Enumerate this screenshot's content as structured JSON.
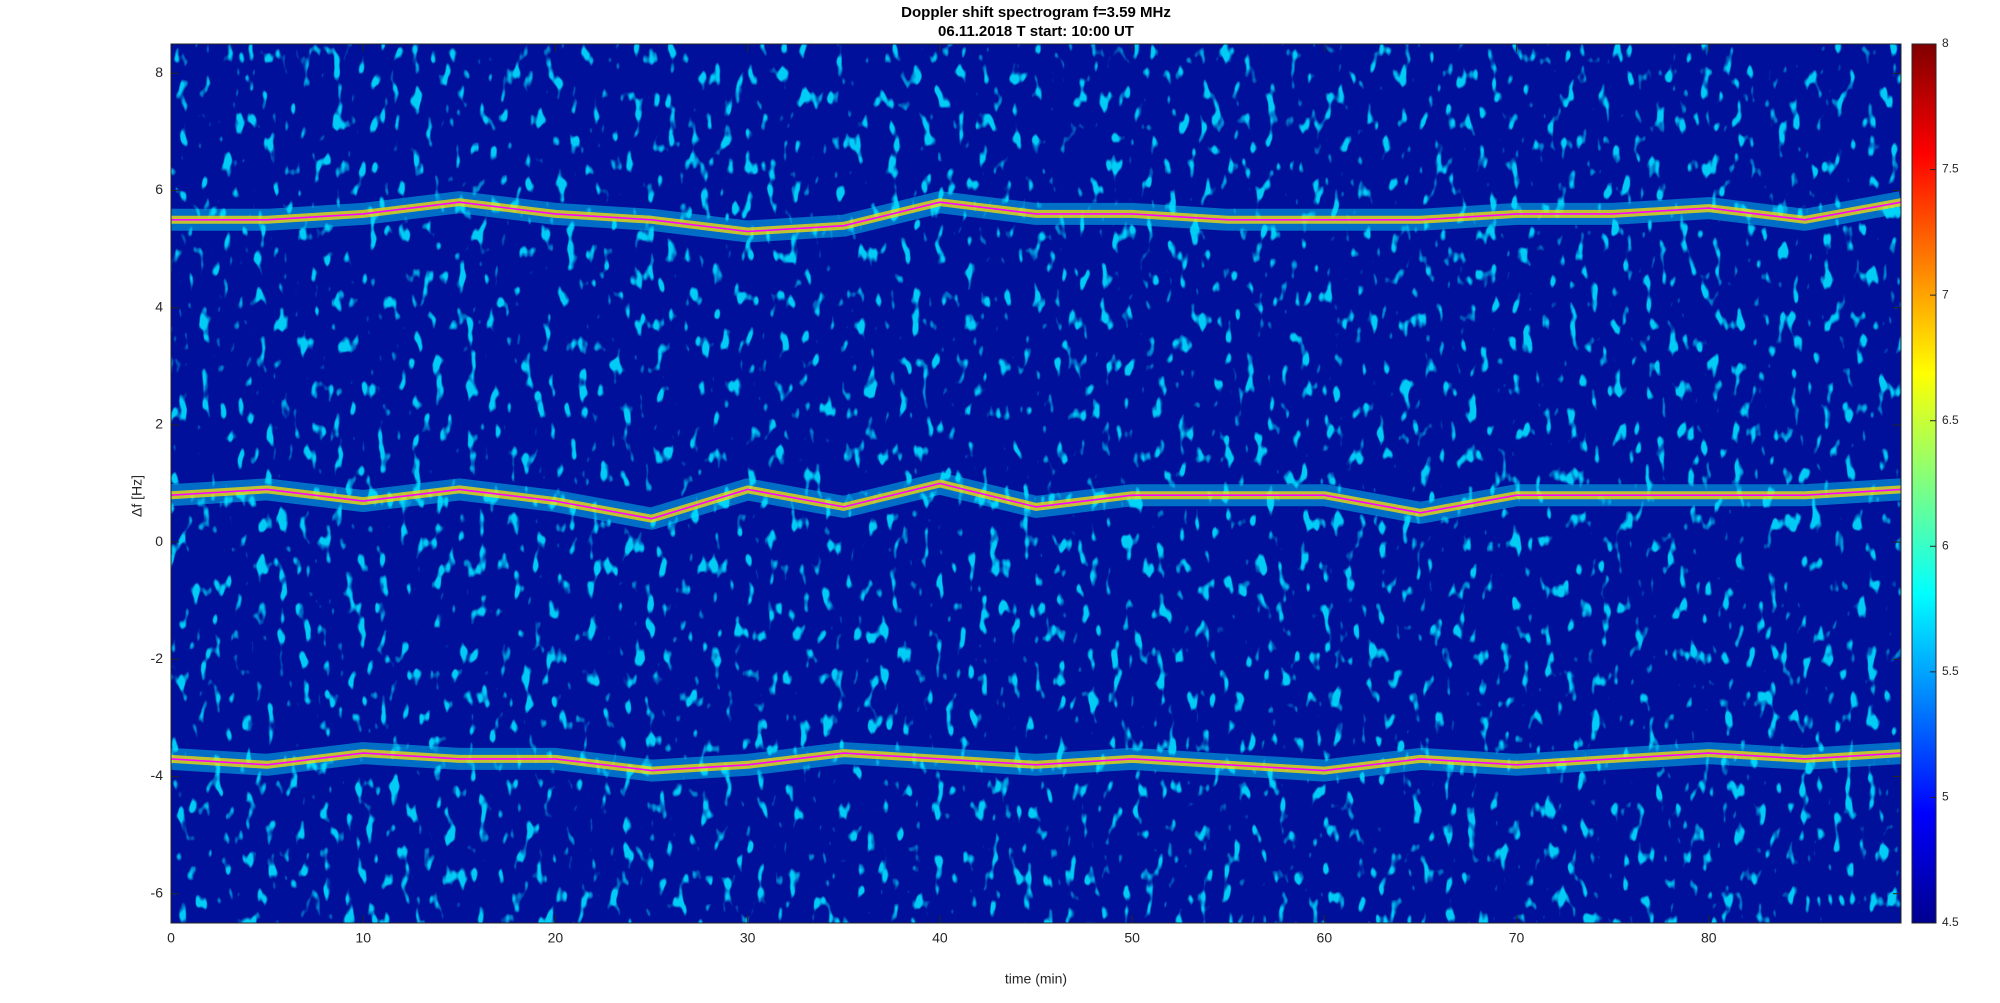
{
  "chart_data": {
    "type": "spectrogram",
    "title": "Doppler shift spectrogram f=3.59 MHz",
    "subtitle": "06.11.2018    T start: 10:00 UT",
    "xlabel": "time (min)",
    "ylabel": "Δf [Hz]",
    "xlim": [
      0,
      90
    ],
    "xticks": [
      0,
      10,
      20,
      30,
      40,
      50,
      60,
      70,
      80
    ],
    "ylim": [
      -6.5,
      8.5
    ],
    "yticks": [
      -6,
      -4,
      -2,
      0,
      2,
      4,
      6,
      8
    ],
    "colorbar": {
      "lim": [
        4.5,
        8
      ],
      "ticks": [
        4.5,
        5,
        5.5,
        6,
        6.5,
        7,
        7.5,
        8
      ]
    },
    "x": [
      0,
      5,
      10,
      15,
      20,
      25,
      30,
      35,
      40,
      45,
      50,
      55,
      60,
      65,
      70,
      75,
      80,
      85,
      90
    ],
    "series": [
      {
        "color": "#ff00ff",
        "values": [
          5.5,
          5.5,
          5.6,
          5.8,
          5.6,
          5.5,
          5.3,
          5.4,
          5.8,
          5.6,
          5.6,
          5.5,
          5.5,
          5.5,
          5.6,
          5.6,
          5.7,
          5.5,
          5.8
        ]
      },
      {
        "color": "#ff00ff",
        "values": [
          0.8,
          0.9,
          0.7,
          0.9,
          0.7,
          0.4,
          0.9,
          0.6,
          1.0,
          0.6,
          0.8,
          0.8,
          0.8,
          0.5,
          0.8,
          0.8,
          0.8,
          0.8,
          0.9
        ]
      },
      {
        "color": "#ff00ff",
        "values": [
          -3.7,
          -3.8,
          -3.6,
          -3.7,
          -3.7,
          -3.9,
          -3.8,
          -3.6,
          -3.7,
          -3.8,
          -3.7,
          -3.8,
          -3.9,
          -3.7,
          -3.8,
          -3.7,
          -3.6,
          -3.7,
          -3.6
        ]
      }
    ]
  }
}
